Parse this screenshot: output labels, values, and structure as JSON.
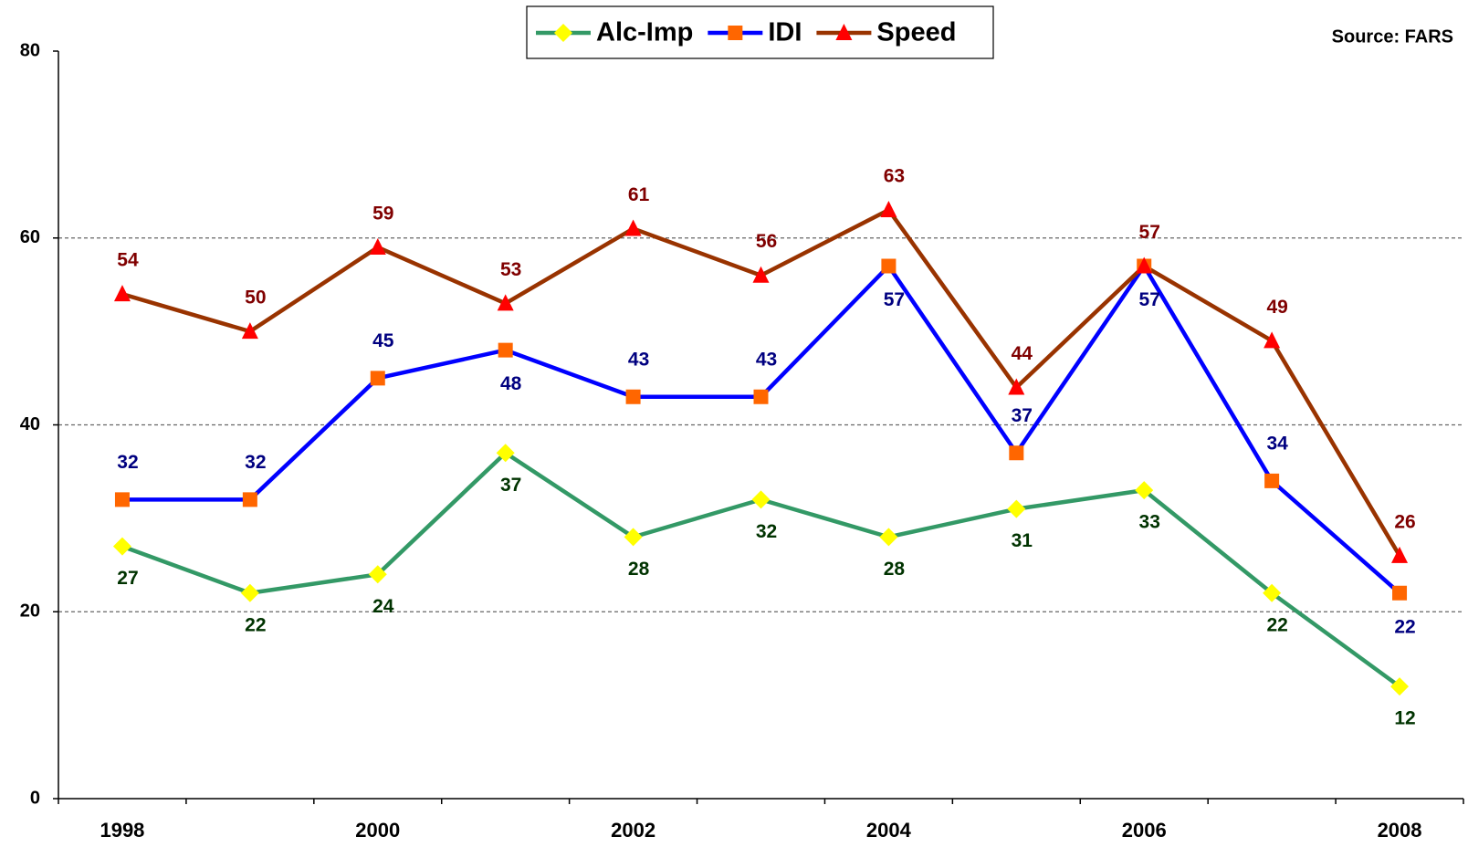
{
  "chart_data": {
    "type": "line",
    "categories": [
      "1998",
      null,
      "2000",
      null,
      "2002",
      null,
      "2004",
      null,
      "2006",
      null,
      "2008"
    ],
    "series": [
      {
        "name": "Alc-Imp",
        "color": "#339966",
        "marker": "diamond",
        "marker_color": "#ffff00",
        "label_color": "#003300",
        "values": [
          27,
          22,
          24,
          37,
          28,
          32,
          28,
          31,
          33,
          22,
          12
        ]
      },
      {
        "name": "IDI",
        "color": "#0000ff",
        "marker": "square",
        "marker_color": "#ff6600",
        "label_color": "#000080",
        "values": [
          32,
          32,
          45,
          48,
          43,
          43,
          57,
          37,
          57,
          34,
          22
        ]
      },
      {
        "name": "Speed",
        "color": "#993300",
        "marker": "triangle",
        "marker_color": "#ff0000",
        "label_color": "#800000",
        "values": [
          54,
          50,
          59,
          53,
          61,
          56,
          63,
          44,
          57,
          49,
          26
        ]
      }
    ],
    "ylim": [
      0,
      80
    ],
    "yticks": [
      0,
      20,
      40,
      60,
      80
    ],
    "grid": true,
    "legend": "top",
    "source": "Source: FARS"
  }
}
